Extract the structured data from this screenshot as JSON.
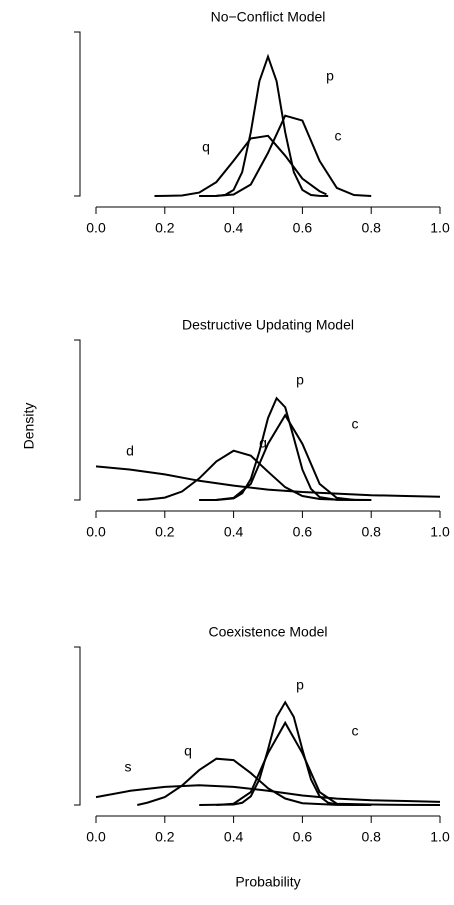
{
  "chart_data": [
    {
      "type": "line",
      "title": "No−Conflict Model",
      "xlim": [
        0,
        1
      ],
      "ylim": [
        0,
        1
      ],
      "xticks": [
        {
          "value": 0,
          "label": "0.0"
        },
        0.2,
        0.4,
        0.6,
        0.8,
        {
          "value": 1,
          "label": "1.0"
        }
      ],
      "series": [
        {
          "name": "p",
          "color": "#000000",
          "x": [
            0.3,
            0.35,
            0.375,
            0.4,
            0.425,
            0.45,
            0.475,
            0.5,
            0.525,
            0.55,
            0.575,
            0.6,
            0.625,
            0.65,
            0.675
          ],
          "values": [
            0,
            0.001,
            0.006,
            0.037,
            0.146,
            0.389,
            0.7,
            0.85,
            0.7,
            0.389,
            0.146,
            0.037,
            0.006,
            0.001,
            0
          ]
        },
        {
          "name": "c",
          "color": "#000000",
          "x": [
            0.3,
            0.35,
            0.4,
            0.45,
            0.5,
            0.55,
            0.6,
            0.65,
            0.7,
            0.75,
            0.8
          ],
          "values": [
            0,
            0.001,
            0.009,
            0.07,
            0.263,
            0.49,
            0.46,
            0.214,
            0.049,
            0.006,
            0
          ]
        },
        {
          "name": "q",
          "color": "#000000",
          "x": [
            0.17,
            0.2,
            0.25,
            0.3,
            0.35,
            0.4,
            0.45,
            0.5,
            0.55,
            0.6,
            0.65,
            0.67
          ],
          "values": [
            0,
            0.001,
            0.003,
            0.021,
            0.085,
            0.215,
            0.351,
            0.367,
            0.246,
            0.106,
            0.029,
            0.01
          ]
        }
      ]
    },
    {
      "type": "line",
      "title": "Destructive Updating Model",
      "y_label": "Density",
      "xlim": [
        0,
        1
      ],
      "ylim": [
        0,
        1
      ],
      "xticks": [
        {
          "value": 0,
          "label": "0.0"
        },
        0.2,
        0.4,
        0.6,
        0.8,
        {
          "value": 1,
          "label": "1.0"
        }
      ],
      "series": [
        {
          "name": "p",
          "color": "#000000",
          "x": [
            0.3,
            0.35,
            0.4,
            0.425,
            0.45,
            0.475,
            0.5,
            0.525,
            0.55,
            0.575,
            0.6,
            0.625,
            0.65,
            0.7,
            0.8
          ],
          "values": [
            0,
            0,
            0.01,
            0.042,
            0.131,
            0.303,
            0.512,
            0.636,
            0.58,
            0.388,
            0.19,
            0.069,
            0.018,
            0.001,
            0
          ]
        },
        {
          "name": "c",
          "color": "#000000",
          "x": [
            0.3,
            0.35,
            0.4,
            0.45,
            0.5,
            0.55,
            0.6,
            0.65,
            0.7,
            0.75,
            0.8
          ],
          "values": [
            0,
            0.001,
            0.013,
            0.101,
            0.351,
            0.53,
            0.351,
            0.101,
            0.013,
            0.001,
            0
          ]
        },
        {
          "name": "q",
          "color": "#000000",
          "x": [
            0.12,
            0.15,
            0.2,
            0.25,
            0.3,
            0.35,
            0.4,
            0.45,
            0.5,
            0.55,
            0.6,
            0.65,
            0.7,
            0.8
          ],
          "values": [
            0,
            0.003,
            0.015,
            0.053,
            0.135,
            0.241,
            0.308,
            0.277,
            0.177,
            0.08,
            0.025,
            0.006,
            0.002,
            0
          ]
        },
        {
          "name": "d",
          "color": "#000000",
          "x": [
            0,
            0.1,
            0.2,
            0.3,
            0.4,
            0.5,
            0.6,
            0.7,
            0.8,
            0.9,
            1
          ],
          "values": [
            0.21,
            0.19,
            0.16,
            0.12,
            0.09,
            0.065,
            0.05,
            0.04,
            0.03,
            0.025,
            0.02
          ]
        }
      ]
    },
    {
      "type": "line",
      "title": "Coexistence Model",
      "x_label": "Probability",
      "xlim": [
        0,
        1
      ],
      "ylim": [
        0,
        1
      ],
      "xticks": [
        {
          "value": 0,
          "label": "0.0"
        },
        0.2,
        0.4,
        0.6,
        0.8,
        {
          "value": 1,
          "label": "1.0"
        }
      ],
      "series": [
        {
          "name": "p",
          "color": "#000000",
          "x": [
            0.3,
            0.4,
            0.425,
            0.45,
            0.475,
            0.5,
            0.525,
            0.55,
            0.575,
            0.6,
            0.625,
            0.65,
            0.675,
            0.7,
            0.8
          ],
          "values": [
            0,
            0.003,
            0.014,
            0.055,
            0.162,
            0.351,
            0.557,
            0.65,
            0.557,
            0.351,
            0.162,
            0.055,
            0.014,
            0.003,
            0
          ]
        },
        {
          "name": "c",
          "color": "#000000",
          "x": [
            0.35,
            0.4,
            0.45,
            0.5,
            0.55,
            0.6,
            0.65,
            0.7,
            0.8,
            0.9,
            1
          ],
          "values": [
            0,
            0.008,
            0.082,
            0.328,
            0.52,
            0.328,
            0.082,
            0.008,
            0.003,
            0.001,
            0
          ]
        },
        {
          "name": "q",
          "color": "#000000",
          "x": [
            0.12,
            0.15,
            0.2,
            0.25,
            0.3,
            0.35,
            0.4,
            0.45,
            0.5,
            0.55,
            0.6,
            0.7,
            0.8
          ],
          "values": [
            0,
            0.015,
            0.05,
            0.123,
            0.221,
            0.293,
            0.284,
            0.202,
            0.106,
            0.041,
            0.011,
            0.001,
            0
          ]
        },
        {
          "name": "s",
          "color": "#000000",
          "x": [
            0,
            0.1,
            0.2,
            0.3,
            0.4,
            0.5,
            0.6,
            0.7,
            0.8,
            0.9,
            1
          ],
          "values": [
            0.05,
            0.09,
            0.115,
            0.125,
            0.115,
            0.09,
            0.06,
            0.04,
            0.03,
            0.025,
            0.02
          ]
        }
      ]
    }
  ]
}
